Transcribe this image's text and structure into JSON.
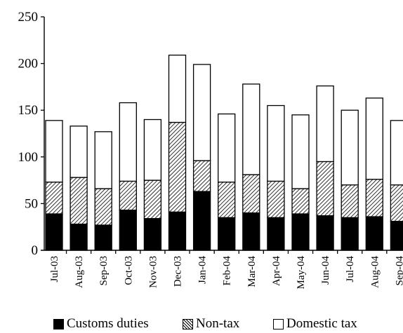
{
  "chart_data": {
    "type": "bar",
    "stacked": true,
    "title": "",
    "xlabel": "",
    "ylabel": "",
    "ylim": [
      0,
      250
    ],
    "yticks": [
      0,
      50,
      100,
      150,
      200,
      250
    ],
    "grid": false,
    "legend_position": "bottom",
    "categories": [
      "Jul-03",
      "Aug-03",
      "Sep-03",
      "Oct-03",
      "Nov-03",
      "Dec-03",
      "Jan-04",
      "Feb-04",
      "Mar-04",
      "Apr-04",
      "May-04",
      "Jun-04",
      "Jul-04",
      "Aug-04",
      "Sep-04"
    ],
    "series": [
      {
        "name": "Customs duties",
        "fill": "solid",
        "color": "#000000",
        "values": [
          39,
          28,
          27,
          43,
          34,
          41,
          63,
          35,
          40,
          35,
          39,
          37,
          35,
          36,
          31
        ]
      },
      {
        "name": "Non-tax",
        "fill": "hatched",
        "color": "#000000",
        "values": [
          34,
          50,
          39,
          31,
          41,
          96,
          33,
          38,
          41,
          39,
          27,
          58,
          35,
          40,
          39
        ]
      },
      {
        "name": "Domestic tax",
        "fill": "hollow",
        "color": "#ffffff",
        "values": [
          66,
          55,
          61,
          84,
          65,
          72,
          103,
          73,
          97,
          81,
          79,
          81,
          80,
          87,
          69
        ]
      }
    ]
  },
  "legend": {
    "items": [
      {
        "label": "Customs duties",
        "swatch": "solid"
      },
      {
        "label": "Non-tax",
        "swatch": "hatched"
      },
      {
        "label": "Domestic tax",
        "swatch": "hollow"
      }
    ]
  }
}
